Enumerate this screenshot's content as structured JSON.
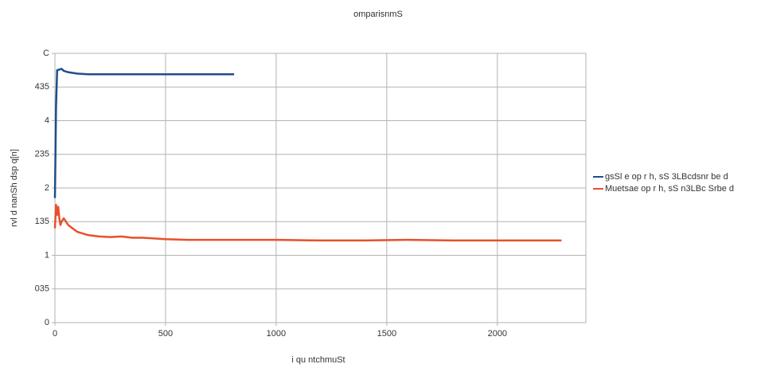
{
  "chart_data": {
    "type": "line",
    "title": "omparisnmS",
    "x_label": "i qu ntchmuSt",
    "y_label": "rvl d nanSh dsp q[n]",
    "xlim": [
      0,
      2400
    ],
    "xticks": [
      0,
      500,
      1000,
      1500,
      2000
    ],
    "ylim": [
      0,
      4
    ],
    "yticks": [
      0,
      {
        "value": 0.5,
        "label": "035"
      },
      1,
      {
        "value": 1.5,
        "label": "135"
      },
      2,
      {
        "value": 2.5,
        "label": "235"
      },
      {
        "value": 3,
        "label": "4"
      },
      {
        "value": 3.5,
        "label": "435"
      },
      {
        "value": 4,
        "label": "C"
      }
    ],
    "grid": true,
    "legend": "right",
    "series": [
      {
        "name": "gsSl e op r h, sS 3LBcdsnr be d",
        "color": "#1f4e8c",
        "x": [
          0,
          5,
          10,
          20,
          30,
          40,
          60,
          80,
          100,
          150,
          200,
          300,
          400,
          500,
          600,
          700,
          810
        ],
        "values": [
          1.85,
          3.2,
          3.75,
          3.76,
          3.77,
          3.74,
          3.72,
          3.71,
          3.7,
          3.69,
          3.69,
          3.69,
          3.69,
          3.69,
          3.69,
          3.69,
          3.69
        ]
      },
      {
        "name": "Muetsae op r h, sS n3LBc Srbe d",
        "color": "#e8502a",
        "x": [
          0,
          5,
          10,
          15,
          20,
          25,
          30,
          40,
          50,
          60,
          80,
          100,
          150,
          200,
          250,
          300,
          350,
          400,
          500,
          600,
          800,
          1000,
          1200,
          1400,
          1600,
          1800,
          2000,
          2200,
          2290
        ],
        "values": [
          1.4,
          1.75,
          1.6,
          1.72,
          1.55,
          1.45,
          1.5,
          1.55,
          1.5,
          1.45,
          1.4,
          1.35,
          1.3,
          1.28,
          1.27,
          1.28,
          1.26,
          1.26,
          1.24,
          1.23,
          1.23,
          1.23,
          1.22,
          1.22,
          1.23,
          1.22,
          1.22,
          1.22,
          1.22
        ]
      }
    ]
  }
}
